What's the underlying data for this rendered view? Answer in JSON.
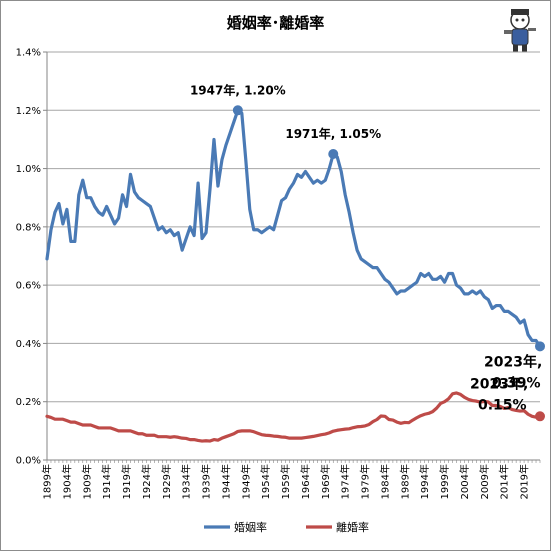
{
  "chart_data": {
    "type": "line",
    "title": "婚姻率･離婚率",
    "xlabel": "",
    "ylabel": "",
    "ylim": [
      0,
      1.4
    ],
    "y_ticks": [
      "0.0%",
      "0.2%",
      "0.4%",
      "0.6%",
      "0.8%",
      "1.0%",
      "1.2%",
      "1.4%"
    ],
    "x_ticks": [
      "1899年",
      "1904年",
      "1909年",
      "1914年",
      "1919年",
      "1924年",
      "1929年",
      "1934年",
      "1939年",
      "1944年",
      "1949年",
      "1954年",
      "1959年",
      "1964年",
      "1969年",
      "1974年",
      "1979年",
      "1984年",
      "1989年",
      "1994年",
      "1999年",
      "2004年",
      "2009年",
      "2014年",
      "2019年"
    ],
    "xlim": [
      1899,
      2023
    ],
    "grid": true,
    "legend_position": "bottom",
    "series": [
      {
        "name": "婚姻率",
        "color": "#4a7ab5",
        "points": [
          [
            1899,
            0.69
          ],
          [
            1900,
            0.79
          ],
          [
            1901,
            0.85
          ],
          [
            1902,
            0.88
          ],
          [
            1903,
            0.81
          ],
          [
            1904,
            0.86
          ],
          [
            1905,
            0.75
          ],
          [
            1906,
            0.75
          ],
          [
            1907,
            0.91
          ],
          [
            1908,
            0.96
          ],
          [
            1909,
            0.9
          ],
          [
            1910,
            0.9
          ],
          [
            1911,
            0.87
          ],
          [
            1912,
            0.85
          ],
          [
            1913,
            0.84
          ],
          [
            1914,
            0.87
          ],
          [
            1915,
            0.84
          ],
          [
            1916,
            0.81
          ],
          [
            1917,
            0.83
          ],
          [
            1918,
            0.91
          ],
          [
            1919,
            0.87
          ],
          [
            1920,
            0.98
          ],
          [
            1921,
            0.92
          ],
          [
            1922,
            0.9
          ],
          [
            1923,
            0.89
          ],
          [
            1924,
            0.88
          ],
          [
            1925,
            0.87
          ],
          [
            1926,
            0.83
          ],
          [
            1927,
            0.79
          ],
          [
            1928,
            0.8
          ],
          [
            1929,
            0.78
          ],
          [
            1930,
            0.79
          ],
          [
            1931,
            0.77
          ],
          [
            1932,
            0.78
          ],
          [
            1933,
            0.72
          ],
          [
            1934,
            0.76
          ],
          [
            1935,
            0.8
          ],
          [
            1936,
            0.77
          ],
          [
            1937,
            0.95
          ],
          [
            1938,
            0.76
          ],
          [
            1939,
            0.78
          ],
          [
            1940,
            0.93
          ],
          [
            1941,
            1.1
          ],
          [
            1942,
            0.94
          ],
          [
            1943,
            1.03
          ],
          [
            1944,
            1.08
          ],
          [
            1945,
            1.12
          ],
          [
            1946,
            1.16
          ],
          [
            1947,
            1.2
          ],
          [
            1948,
            1.19
          ],
          [
            1949,
            1.03
          ],
          [
            1950,
            0.86
          ],
          [
            1951,
            0.79
          ],
          [
            1952,
            0.79
          ],
          [
            1953,
            0.78
          ],
          [
            1954,
            0.79
          ],
          [
            1955,
            0.8
          ],
          [
            1956,
            0.79
          ],
          [
            1957,
            0.84
          ],
          [
            1958,
            0.89
          ],
          [
            1959,
            0.9
          ],
          [
            1960,
            0.93
          ],
          [
            1961,
            0.95
          ],
          [
            1962,
            0.98
          ],
          [
            1963,
            0.97
          ],
          [
            1964,
            0.99
          ],
          [
            1965,
            0.97
          ],
          [
            1966,
            0.95
          ],
          [
            1967,
            0.96
          ],
          [
            1968,
            0.95
          ],
          [
            1969,
            0.96
          ],
          [
            1970,
            1.0
          ],
          [
            1971,
            1.05
          ],
          [
            1972,
            1.04
          ],
          [
            1973,
            0.99
          ],
          [
            1974,
            0.91
          ],
          [
            1975,
            0.85
          ],
          [
            1976,
            0.78
          ],
          [
            1977,
            0.72
          ],
          [
            1978,
            0.69
          ],
          [
            1979,
            0.68
          ],
          [
            1980,
            0.67
          ],
          [
            1981,
            0.66
          ],
          [
            1982,
            0.66
          ],
          [
            1983,
            0.64
          ],
          [
            1984,
            0.62
          ],
          [
            1985,
            0.61
          ],
          [
            1986,
            0.59
          ],
          [
            1987,
            0.57
          ],
          [
            1988,
            0.58
          ],
          [
            1989,
            0.58
          ],
          [
            1990,
            0.59
          ],
          [
            1991,
            0.6
          ],
          [
            1992,
            0.61
          ],
          [
            1993,
            0.64
          ],
          [
            1994,
            0.63
          ],
          [
            1995,
            0.64
          ],
          [
            1996,
            0.62
          ],
          [
            1997,
            0.62
          ],
          [
            1998,
            0.63
          ],
          [
            1999,
            0.61
          ],
          [
            2000,
            0.64
          ],
          [
            2001,
            0.64
          ],
          [
            2002,
            0.6
          ],
          [
            2003,
            0.59
          ],
          [
            2004,
            0.57
          ],
          [
            2005,
            0.57
          ],
          [
            2006,
            0.58
          ],
          [
            2007,
            0.57
          ],
          [
            2008,
            0.58
          ],
          [
            2009,
            0.56
          ],
          [
            2010,
            0.55
          ],
          [
            2011,
            0.52
          ],
          [
            2012,
            0.53
          ],
          [
            2013,
            0.53
          ],
          [
            2014,
            0.51
          ],
          [
            2015,
            0.51
          ],
          [
            2016,
            0.5
          ],
          [
            2017,
            0.49
          ],
          [
            2018,
            0.47
          ],
          [
            2019,
            0.48
          ],
          [
            2020,
            0.43
          ],
          [
            2021,
            0.41
          ],
          [
            2022,
            0.41
          ],
          [
            2023,
            0.39
          ]
        ]
      },
      {
        "name": "離婚率",
        "color": "#be4b48",
        "points": [
          [
            1899,
            0.15
          ],
          [
            1900,
            0.146
          ],
          [
            1901,
            0.14
          ],
          [
            1902,
            0.14
          ],
          [
            1903,
            0.14
          ],
          [
            1904,
            0.135
          ],
          [
            1905,
            0.13
          ],
          [
            1906,
            0.13
          ],
          [
            1907,
            0.125
          ],
          [
            1908,
            0.12
          ],
          [
            1909,
            0.12
          ],
          [
            1910,
            0.12
          ],
          [
            1911,
            0.115
          ],
          [
            1912,
            0.11
          ],
          [
            1913,
            0.11
          ],
          [
            1914,
            0.11
          ],
          [
            1915,
            0.11
          ],
          [
            1916,
            0.105
          ],
          [
            1917,
            0.1
          ],
          [
            1918,
            0.1
          ],
          [
            1919,
            0.1
          ],
          [
            1920,
            0.1
          ],
          [
            1921,
            0.095
          ],
          [
            1922,
            0.09
          ],
          [
            1923,
            0.09
          ],
          [
            1924,
            0.085
          ],
          [
            1925,
            0.085
          ],
          [
            1926,
            0.085
          ],
          [
            1927,
            0.08
          ],
          [
            1928,
            0.08
          ],
          [
            1929,
            0.08
          ],
          [
            1930,
            0.078
          ],
          [
            1931,
            0.08
          ],
          [
            1932,
            0.078
          ],
          [
            1933,
            0.075
          ],
          [
            1934,
            0.074
          ],
          [
            1935,
            0.07
          ],
          [
            1936,
            0.07
          ],
          [
            1937,
            0.067
          ],
          [
            1938,
            0.065
          ],
          [
            1939,
            0.066
          ],
          [
            1940,
            0.065
          ],
          [
            1941,
            0.07
          ],
          [
            1942,
            0.068
          ],
          [
            1943,
            0.075
          ],
          [
            1944,
            0.08
          ],
          [
            1945,
            0.085
          ],
          [
            1946,
            0.09
          ],
          [
            1947,
            0.098
          ],
          [
            1948,
            0.1
          ],
          [
            1949,
            0.1
          ],
          [
            1950,
            0.1
          ],
          [
            1951,
            0.097
          ],
          [
            1952,
            0.092
          ],
          [
            1953,
            0.087
          ],
          [
            1954,
            0.085
          ],
          [
            1955,
            0.084
          ],
          [
            1956,
            0.082
          ],
          [
            1957,
            0.081
          ],
          [
            1958,
            0.079
          ],
          [
            1959,
            0.078
          ],
          [
            1960,
            0.075
          ],
          [
            1961,
            0.075
          ],
          [
            1962,
            0.075
          ],
          [
            1963,
            0.075
          ],
          [
            1964,
            0.077
          ],
          [
            1965,
            0.079
          ],
          [
            1966,
            0.081
          ],
          [
            1967,
            0.084
          ],
          [
            1968,
            0.087
          ],
          [
            1969,
            0.089
          ],
          [
            1970,
            0.093
          ],
          [
            1971,
            0.099
          ],
          [
            1972,
            0.102
          ],
          [
            1973,
            0.104
          ],
          [
            1974,
            0.106
          ],
          [
            1975,
            0.107
          ],
          [
            1976,
            0.111
          ],
          [
            1977,
            0.114
          ],
          [
            1978,
            0.115
          ],
          [
            1979,
            0.117
          ],
          [
            1980,
            0.122
          ],
          [
            1981,
            0.132
          ],
          [
            1982,
            0.139
          ],
          [
            1983,
            0.151
          ],
          [
            1984,
            0.15
          ],
          [
            1985,
            0.139
          ],
          [
            1986,
            0.137
          ],
          [
            1987,
            0.13
          ],
          [
            1988,
            0.126
          ],
          [
            1989,
            0.129
          ],
          [
            1990,
            0.128
          ],
          [
            1991,
            0.137
          ],
          [
            1992,
            0.145
          ],
          [
            1993,
            0.152
          ],
          [
            1994,
            0.157
          ],
          [
            1995,
            0.16
          ],
          [
            1996,
            0.166
          ],
          [
            1997,
            0.178
          ],
          [
            1998,
            0.194
          ],
          [
            1999,
            0.2
          ],
          [
            2000,
            0.21
          ],
          [
            2001,
            0.227
          ],
          [
            2002,
            0.23
          ],
          [
            2003,
            0.225
          ],
          [
            2004,
            0.215
          ],
          [
            2005,
            0.208
          ],
          [
            2006,
            0.204
          ],
          [
            2007,
            0.202
          ],
          [
            2008,
            0.199
          ],
          [
            2009,
            0.201
          ],
          [
            2010,
            0.199
          ],
          [
            2011,
            0.187
          ],
          [
            2012,
            0.187
          ],
          [
            2013,
            0.184
          ],
          [
            2014,
            0.177
          ],
          [
            2015,
            0.18
          ],
          [
            2016,
            0.173
          ],
          [
            2017,
            0.17
          ],
          [
            2018,
            0.168
          ],
          [
            2019,
            0.169
          ],
          [
            2020,
            0.157
          ],
          [
            2021,
            0.15
          ],
          [
            2022,
            0.147
          ],
          [
            2023,
            0.15
          ]
        ]
      }
    ],
    "annotations": [
      {
        "series": 0,
        "year": 1947,
        "value": 1.2,
        "line1": "1947年, 1.20%",
        "line2": ""
      },
      {
        "series": 0,
        "year": 1971,
        "value": 1.05,
        "line1": "1971年, 1.05%",
        "line2": ""
      },
      {
        "series": 0,
        "year": 2023,
        "value": 0.39,
        "line1": "2023年,",
        "line2": "0.39%"
      },
      {
        "series": 1,
        "year": 2023,
        "value": 0.15,
        "line1": "2023年,",
        "line2": "0.15%"
      }
    ]
  }
}
